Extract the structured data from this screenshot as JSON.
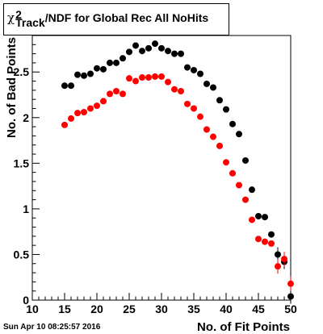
{
  "title": {
    "symbol": "χ",
    "superscript": "2",
    "subscript": "Track",
    "rest": "/NDF for Global Rec All NoHits"
  },
  "timestamp": "Sun Apr 10 08:25:57 2016",
  "chart_data": {
    "type": "scatter",
    "xlabel": "No. of Fit Points",
    "ylabel": "No. of Bad Points",
    "xlim": [
      10,
      50
    ],
    "ylim": [
      0,
      2.9
    ],
    "x_ticks": [
      "10",
      "15",
      "20",
      "25",
      "30",
      "35",
      "40",
      "45",
      "50"
    ],
    "y_ticks": [
      "0",
      "0.5",
      "1",
      "1.5",
      "2",
      "2.5"
    ],
    "grid": false,
    "series": [
      {
        "color": "#000000",
        "points": [
          [
            15,
            2.35
          ],
          [
            16,
            2.35
          ],
          [
            17,
            2.47
          ],
          [
            18,
            2.46
          ],
          [
            19,
            2.48
          ],
          [
            20,
            2.54
          ],
          [
            21,
            2.53
          ],
          [
            22,
            2.6
          ],
          [
            23,
            2.6
          ],
          [
            24,
            2.65
          ],
          [
            25,
            2.72
          ],
          [
            26,
            2.79
          ],
          [
            27,
            2.73
          ],
          [
            28,
            2.76
          ],
          [
            29,
            2.81
          ],
          [
            30,
            2.76
          ],
          [
            31,
            2.73
          ],
          [
            32,
            2.7
          ],
          [
            33,
            2.7
          ],
          [
            34,
            2.55
          ],
          [
            35,
            2.52
          ],
          [
            36,
            2.48
          ],
          [
            37,
            2.37
          ],
          [
            38,
            2.33
          ],
          [
            39,
            2.19
          ],
          [
            40,
            2.09
          ],
          [
            41,
            1.93
          ],
          [
            42,
            1.82
          ],
          [
            43,
            1.53
          ],
          [
            44,
            1.21
          ],
          [
            45,
            0.92
          ],
          [
            46,
            0.91
          ],
          [
            47,
            0.72
          ],
          [
            48,
            0.5
          ],
          [
            49,
            0.42
          ],
          [
            50,
            0.04
          ]
        ]
      },
      {
        "color": "#ff0000",
        "points": [
          [
            15,
            1.92
          ],
          [
            16,
            1.99
          ],
          [
            17,
            2.05
          ],
          [
            18,
            2.06
          ],
          [
            19,
            2.1
          ],
          [
            20,
            2.13
          ],
          [
            21,
            2.18
          ],
          [
            22,
            2.26
          ],
          [
            23,
            2.29
          ],
          [
            24,
            2.26
          ],
          [
            25,
            2.43
          ],
          [
            26,
            2.4
          ],
          [
            27,
            2.44
          ],
          [
            28,
            2.44
          ],
          [
            29,
            2.45
          ],
          [
            30,
            2.45
          ],
          [
            31,
            2.39
          ],
          [
            32,
            2.31
          ],
          [
            33,
            2.29
          ],
          [
            34,
            2.15
          ],
          [
            35,
            2.1
          ],
          [
            36,
            2.01
          ],
          [
            37,
            1.87
          ],
          [
            38,
            1.79
          ],
          [
            39,
            1.69
          ],
          [
            40,
            1.51
          ],
          [
            41,
            1.39
          ],
          [
            42,
            1.26
          ],
          [
            43,
            1.1
          ],
          [
            44,
            0.88
          ],
          [
            45,
            0.67
          ],
          [
            46,
            0.64
          ],
          [
            47,
            0.62
          ],
          [
            48,
            0.37
          ],
          [
            49,
            0.45
          ],
          [
            50,
            0.18
          ]
        ]
      }
    ]
  }
}
